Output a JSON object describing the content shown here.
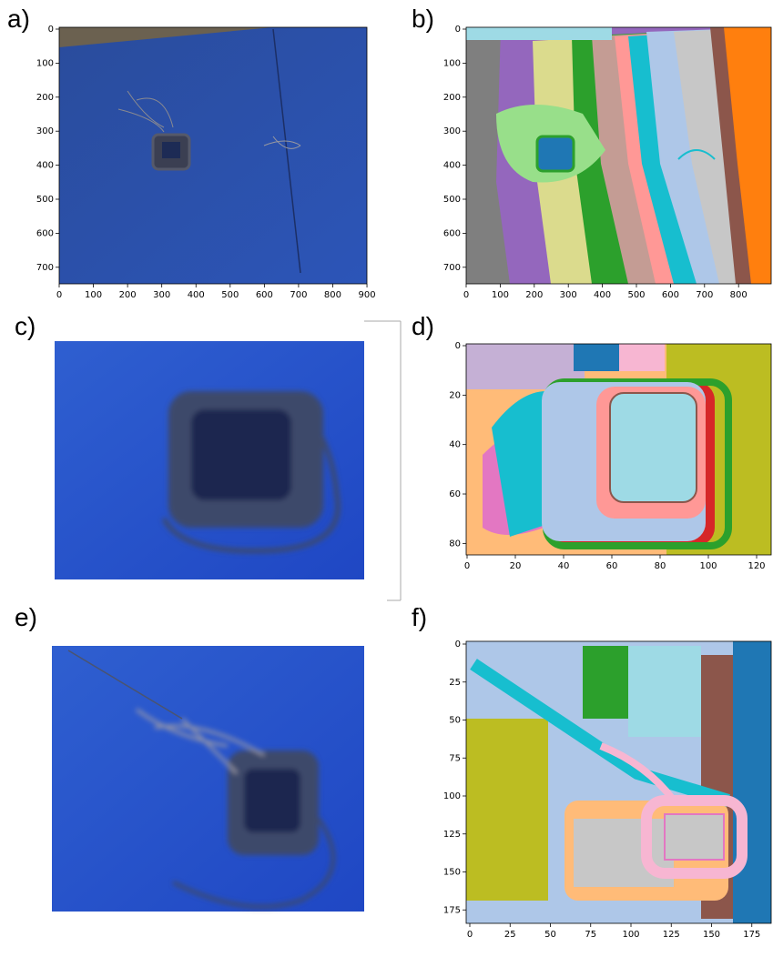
{
  "panels": [
    {
      "label": "a)",
      "xticks": [
        0,
        100,
        200,
        300,
        400,
        500,
        600,
        700,
        800,
        900
      ],
      "yticks": [
        0,
        100,
        200,
        300,
        400,
        500,
        600,
        700
      ]
    },
    {
      "label": "b)",
      "xticks": [
        0,
        100,
        200,
        300,
        400,
        500,
        600,
        700,
        800
      ],
      "yticks": [
        0,
        100,
        200,
        300,
        400,
        500,
        600,
        700
      ]
    },
    {
      "label": "c)"
    },
    {
      "label": "d)",
      "xticks": [
        0,
        20,
        40,
        60,
        80,
        100,
        120
      ],
      "yticks": [
        0,
        20,
        40,
        60,
        80
      ]
    },
    {
      "label": "e)"
    },
    {
      "label": "f)",
      "xticks": [
        0,
        25,
        50,
        75,
        100,
        125,
        150,
        175
      ],
      "yticks": [
        0,
        25,
        50,
        75,
        100,
        125,
        150,
        175
      ]
    }
  ]
}
